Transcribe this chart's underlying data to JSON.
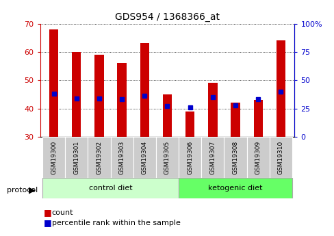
{
  "title": "GDS954 / 1368366_at",
  "samples": [
    "GSM19300",
    "GSM19301",
    "GSM19302",
    "GSM19303",
    "GSM19304",
    "GSM19305",
    "GSM19306",
    "GSM19307",
    "GSM19308",
    "GSM19309",
    "GSM19310"
  ],
  "count_values": [
    68,
    60,
    59,
    56,
    63,
    45,
    39,
    49,
    42,
    43,
    64
  ],
  "percentile_values": [
    38,
    34,
    34,
    33,
    36,
    27,
    26,
    35,
    28,
    33,
    40
  ],
  "ylim": [
    30,
    70
  ],
  "yticks": [
    30,
    40,
    50,
    60,
    70
  ],
  "right_yticks": [
    0,
    25,
    50,
    75,
    100
  ],
  "right_ytick_positions": [
    30,
    40,
    50,
    60,
    70
  ],
  "bar_color": "#cc0000",
  "dot_color": "#0000cc",
  "bar_width": 0.4,
  "control_count": 6,
  "ketogenic_count": 5,
  "control_label": "control diet",
  "ketogenic_label": "ketogenic diet",
  "protocol_label": "protocol",
  "control_bg": "#ccffcc",
  "ketogenic_bg": "#66ff66",
  "sample_bg": "#cccccc",
  "legend_count": "count",
  "legend_percentile": "percentile rank within the sample",
  "left_axis_color": "#cc0000",
  "right_axis_color": "#0000cc",
  "baseline": 30
}
